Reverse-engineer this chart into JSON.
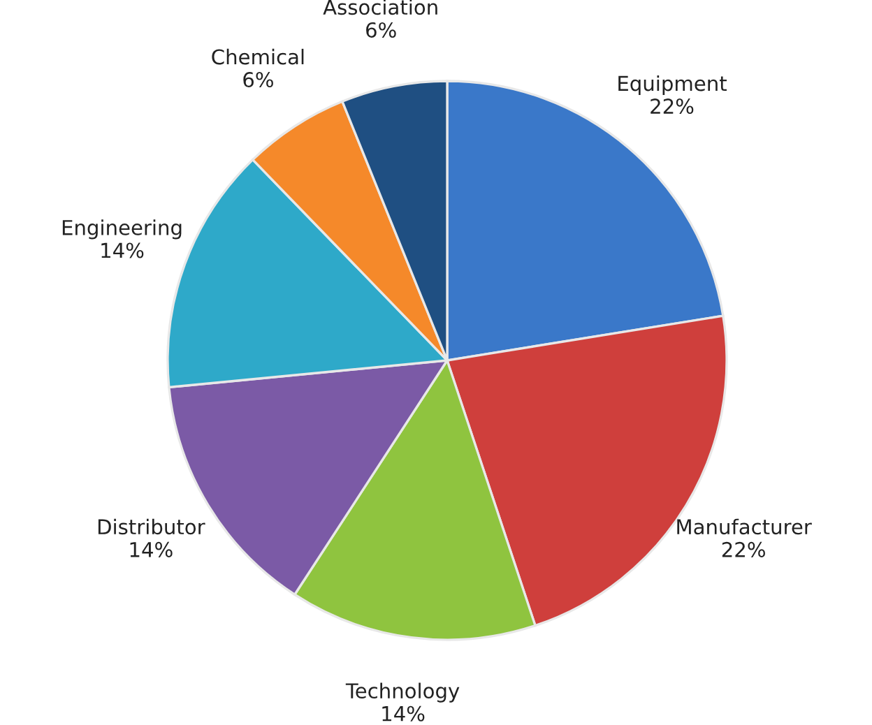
{
  "chart_data": {
    "type": "pie",
    "categories": [
      "Equipment",
      "Manufacturer",
      "Technology",
      "Distributor",
      "Engineering",
      "Chemical",
      "Association"
    ],
    "values": [
      22,
      22,
      14,
      14,
      14,
      6,
      6
    ],
    "value_labels": [
      "22%",
      "22%",
      "14%",
      "14%",
      "14%",
      "6%",
      "6%"
    ],
    "colors": [
      "#3a78c9",
      "#cf3f3c",
      "#8fc43f",
      "#7b5aa6",
      "#2ea9c9",
      "#f5892a",
      "#1f4f82"
    ]
  }
}
